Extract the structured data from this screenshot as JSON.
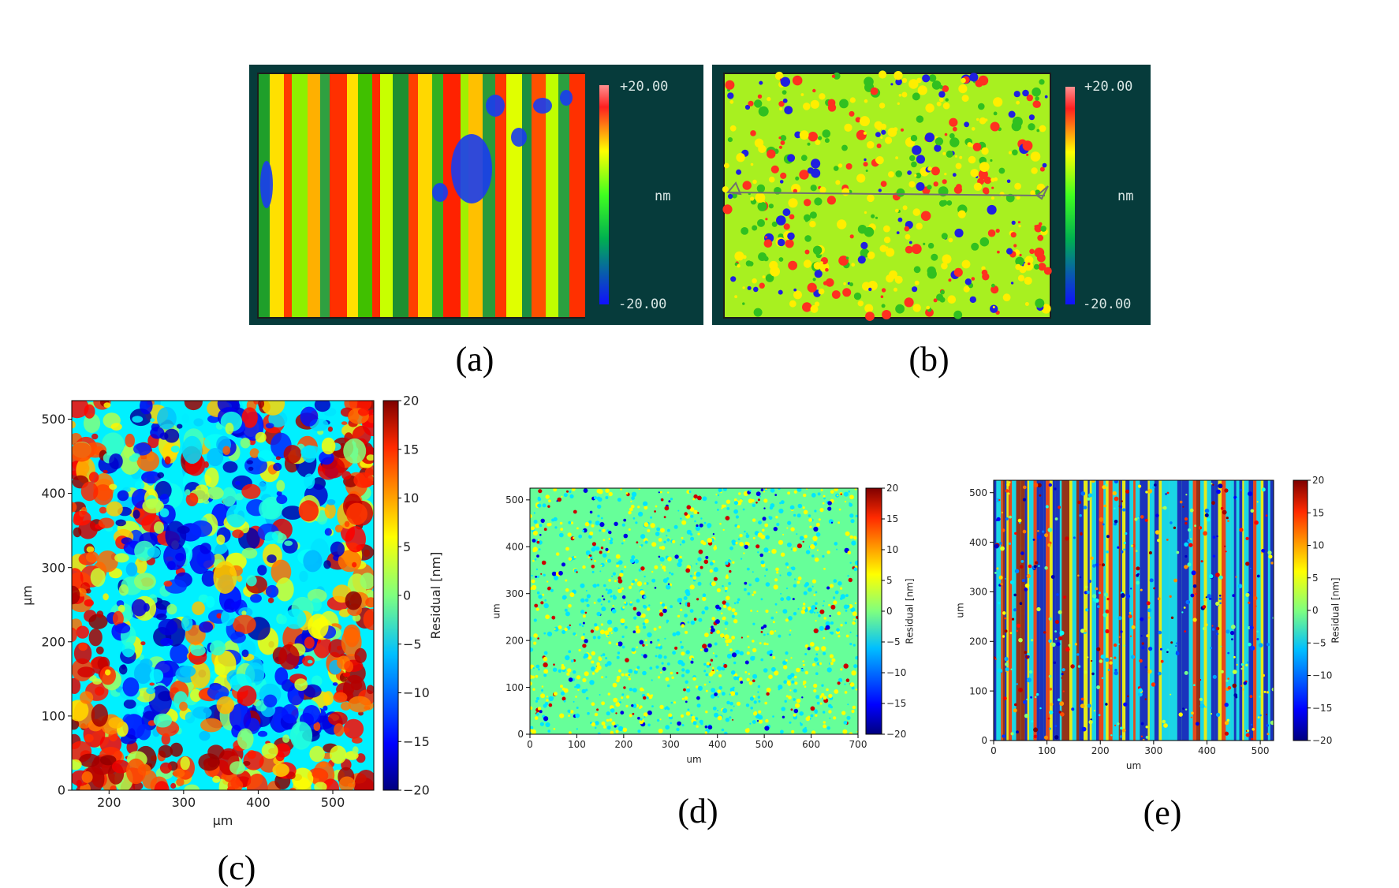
{
  "figure": {
    "captions": {
      "a": "(a)",
      "b": "(b)",
      "c": "(c)",
      "d": "(d)",
      "e": "(e)"
    }
  },
  "panel_a": {
    "cb_max": "+20.00",
    "cb_unit": "nm",
    "cb_min": "-20.00",
    "pattern": "vertical-stripes"
  },
  "panel_b": {
    "cb_max": "+20.00",
    "cb_unit": "nm",
    "cb_min": "-20.00",
    "pattern": "speckle-diagonal"
  },
  "chart_data": [
    {
      "id": "c",
      "type": "heatmap",
      "pattern": "blobs",
      "xlabel": "µm",
      "ylabel": "µm",
      "cblabel": "Residual [nm]",
      "xlim": [
        150,
        555
      ],
      "ylim": [
        0,
        525
      ],
      "xticks": [
        200,
        300,
        400,
        500
      ],
      "yticks": [
        0,
        100,
        200,
        300,
        400,
        500
      ],
      "cbticks": [
        "20",
        "15",
        "10",
        "5",
        "0",
        "−5",
        "−10",
        "−15",
        "−20"
      ],
      "clim": [
        -20,
        20
      ]
    },
    {
      "id": "d",
      "type": "heatmap",
      "pattern": "fine-dots",
      "xlabel": "um",
      "ylabel": "um",
      "cblabel": "Residual [nm]",
      "xlim": [
        0,
        700
      ],
      "ylim": [
        0,
        525
      ],
      "xticks": [
        0,
        100,
        200,
        300,
        400,
        500,
        600,
        700
      ],
      "yticks": [
        0,
        100,
        200,
        300,
        400,
        500
      ],
      "cbticks": [
        "20",
        "15",
        "10",
        "5",
        "0",
        "−5",
        "−10",
        "−15",
        "−20"
      ],
      "clim": [
        -20,
        20
      ]
    },
    {
      "id": "e",
      "type": "heatmap",
      "pattern": "fine-stripes",
      "xlabel": "um",
      "ylabel": "um",
      "cblabel": "Residual [nm]",
      "xlim": [
        0,
        525
      ],
      "ylim": [
        0,
        525
      ],
      "xticks": [
        0,
        100,
        200,
        300,
        400,
        500
      ],
      "yticks": [
        0,
        100,
        200,
        300,
        400,
        500
      ],
      "cbticks": [
        "20",
        "15",
        "10",
        "5",
        "0",
        "−5",
        "−10",
        "−15",
        "−20"
      ],
      "clim": [
        -20,
        20
      ]
    }
  ]
}
